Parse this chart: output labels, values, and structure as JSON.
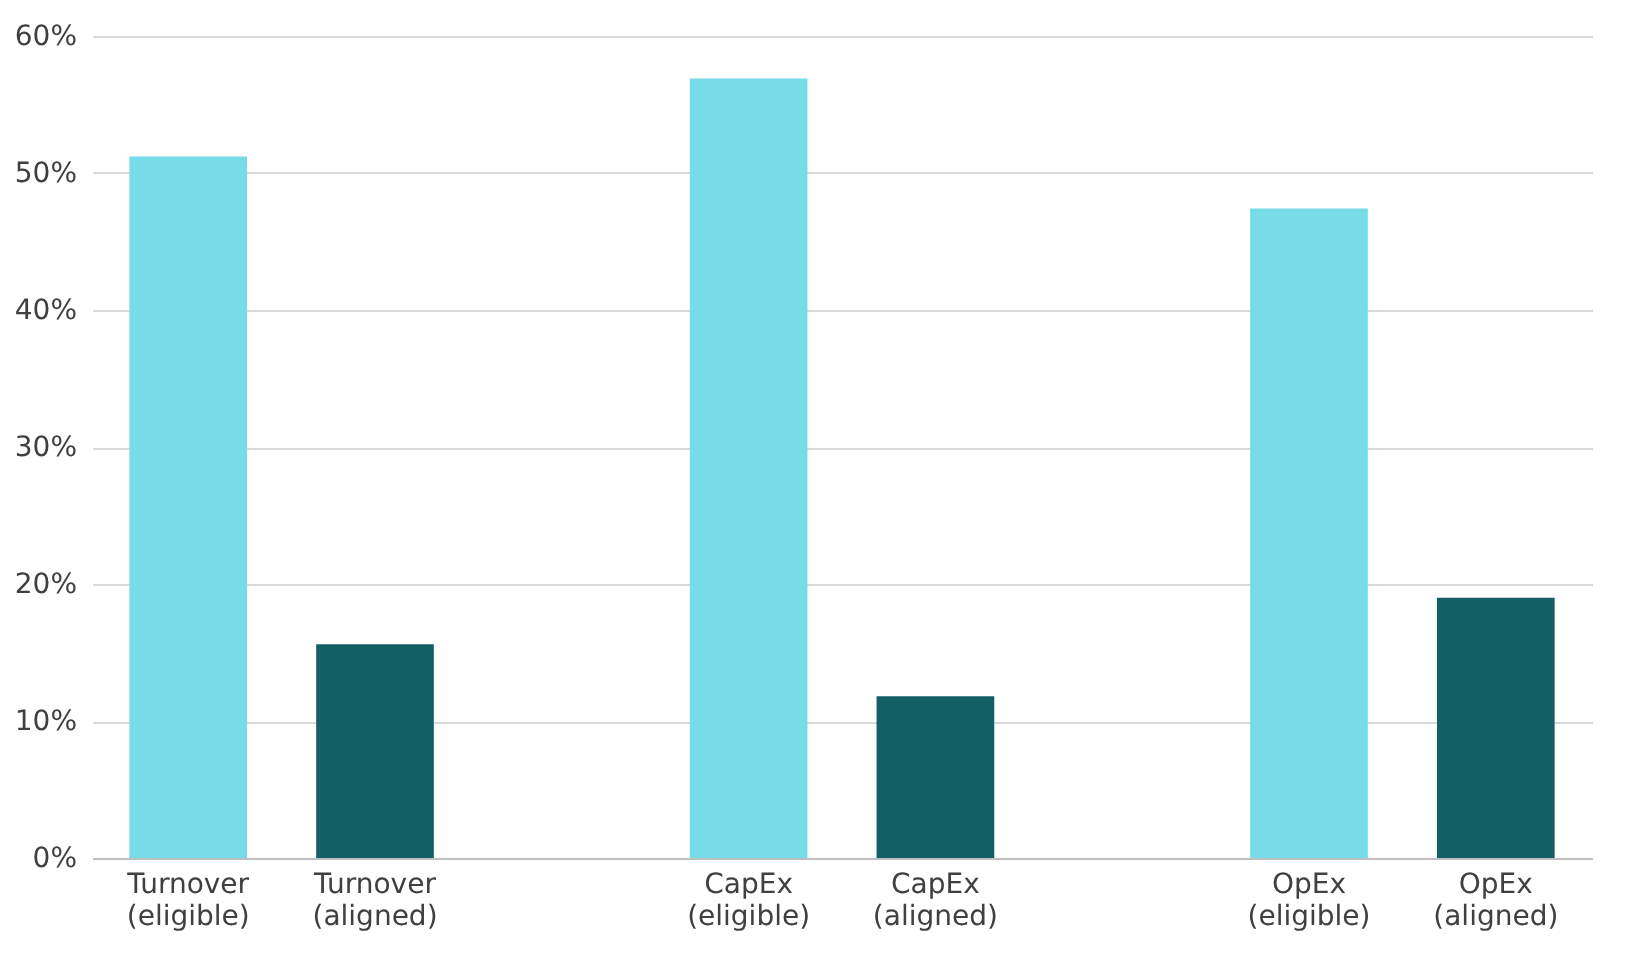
{
  "chart_data": {
    "type": "bar",
    "categories": [
      "Turnover (eligible)",
      "Turnover (aligned)",
      null,
      "CapEx (eligible)",
      "CapEx (aligned)",
      null,
      "OpEx (eligible)",
      "OpEx (aligned)"
    ],
    "values": [
      51.2,
      15.6,
      null,
      56.9,
      11.8,
      null,
      47.4,
      19.0
    ],
    "colors": [
      "#77dce8",
      "#135f66",
      null,
      "#77dce8",
      "#135f66",
      null,
      "#77dce8",
      "#135f66"
    ],
    "ylim": [
      0,
      60
    ],
    "yticks": [
      {
        "value": 0,
        "label": "0%"
      },
      {
        "value": 10,
        "label": "10%"
      },
      {
        "value": 20,
        "label": "20%"
      },
      {
        "value": 30,
        "label": "30%"
      },
      {
        "value": 40,
        "label": "40%"
      },
      {
        "value": 50,
        "label": "50%"
      },
      {
        "value": 60,
        "label": "60%"
      }
    ],
    "grid": "y"
  }
}
